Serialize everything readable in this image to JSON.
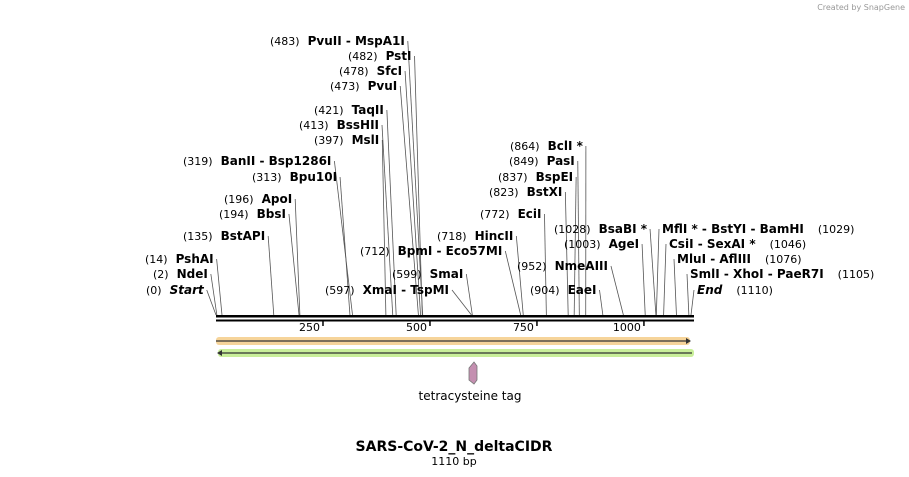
{
  "header": {
    "credit": "Created by SnapGene"
  },
  "map": {
    "sites": [
      {
        "value": 483,
        "label": "(483)",
        "enzymes": "PvuII   - MspA1I"
      },
      {
        "value": 482,
        "label": "(482)",
        "enzymes": "PstI"
      },
      {
        "value": 478,
        "label": "(478)",
        "enzymes": "SfcI"
      },
      {
        "value": 473,
        "label": "(473)",
        "enzymes": "PvuI"
      },
      {
        "value": 421,
        "label": "(421)",
        "enzymes": "TaqII"
      },
      {
        "value": 413,
        "label": "(413)",
        "enzymes": "BssHII"
      },
      {
        "value": 397,
        "label": "(397)",
        "enzymes": "MslI"
      },
      {
        "value": 319,
        "label": "(319)",
        "enzymes": "BanII  - Bsp1286I"
      },
      {
        "value": 313,
        "label": "(313)",
        "enzymes": "Bpu10I"
      },
      {
        "value": 196,
        "label": "(196)",
        "enzymes": "ApoI"
      },
      {
        "value": 194,
        "label": "(194)",
        "enzymes": "BbsI"
      },
      {
        "value": 135,
        "label": "(135)",
        "enzymes": "BstAPI"
      },
      {
        "value": 14,
        "label": "(14)",
        "enzymes": "PshAI"
      },
      {
        "value": 2,
        "label": "(2)",
        "enzymes": "NdeI"
      },
      {
        "value": 0,
        "label": "(0)",
        "enzymes": "Start"
      },
      {
        "value": 597,
        "label": "(597)",
        "enzymes": "XmaI  - TspMI"
      },
      {
        "value": 599,
        "label": "(599)",
        "enzymes": "SmaI"
      },
      {
        "value": 712,
        "label": "(712)",
        "enzymes": "BpmI  - Eco57MI"
      },
      {
        "value": 718,
        "label": "(718)",
        "enzymes": "HincII"
      },
      {
        "value": 772,
        "label": "(772)",
        "enzymes": "EciI"
      },
      {
        "value": 823,
        "label": "(823)",
        "enzymes": "BstXI"
      },
      {
        "value": 837,
        "label": "(837)",
        "enzymes": "BspEI"
      },
      {
        "value": 849,
        "label": "(849)",
        "enzymes": "PasI"
      },
      {
        "value": 864,
        "label": "(864)",
        "enzymes": "BclI *"
      },
      {
        "value": 952,
        "label": "(952)",
        "enzymes": "NmeAIII"
      },
      {
        "value": 904,
        "label": "(904)",
        "enzymes": "EaeI"
      },
      {
        "value": 1003,
        "label": "(1003)",
        "enzymes": "AgeI"
      },
      {
        "value": 1028,
        "label": "(1028)",
        "enzymes": "BsaBI *"
      },
      {
        "value": 1029,
        "label": "(1029)",
        "enzymes": "MflI *  - BstYI  - BamHI"
      },
      {
        "value": 1046,
        "label": "(1046)",
        "enzymes": "CsiI  - SexAI *"
      },
      {
        "value": 1076,
        "label": "(1076)",
        "enzymes": "MluI  - AflIII"
      },
      {
        "value": 1105,
        "label": "(1105)",
        "enzymes": "SmlI  - XhoI  - PaeR7I"
      },
      {
        "value": 1110,
        "label": "(1110)",
        "enzymes": "End"
      }
    ],
    "ticks": [
      250,
      500,
      750,
      1000
    ],
    "feature": "tetracysteine tag"
  },
  "title": "SARS-CoV-2_N_deltaCIDR",
  "subtitle": "1110 bp"
}
